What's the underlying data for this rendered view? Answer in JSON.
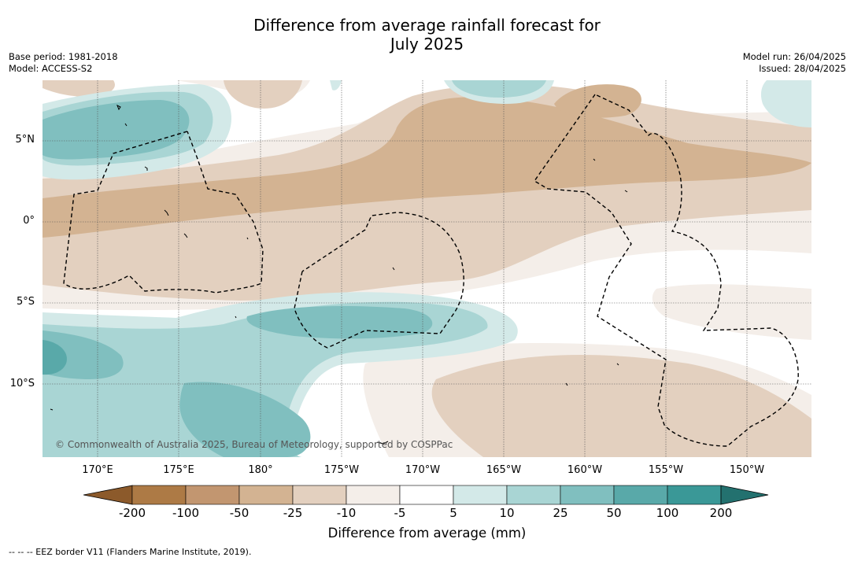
{
  "title_line1": "Difference from average rainfall forecast for",
  "title_line2": "July 2025",
  "base_period": "Base period: 1981-2018",
  "model": "Model: ACCESS-S2",
  "model_run": "Model run: 26/04/2025",
  "issued": "Issued: 28/04/2025",
  "lat_labels": [
    "5°N",
    "0°",
    "5°S",
    "10°S"
  ],
  "lon_labels": [
    "170°E",
    "175°E",
    "180°",
    "175°W",
    "170°W",
    "165°W",
    "160°W",
    "155°W",
    "150°W"
  ],
  "copyright": "© Commonwealth of Australia 2025, Bureau of Meteorology, supported by COSPPac",
  "colorbar": {
    "ticks": [
      "-200",
      "-100",
      "-50",
      "-25",
      "-10",
      "-5",
      "5",
      "10",
      "25",
      "50",
      "100",
      "200"
    ],
    "colors": [
      "#8c5a2b",
      "#ad7a45",
      "#c29670",
      "#d3b392",
      "#e3d0bf",
      "#f4eee9",
      "#ffffff",
      "#d3e9e8",
      "#a9d5d4",
      "#80bfbf",
      "#59a9a9",
      "#3a9897",
      "#23716f"
    ],
    "label": "Difference from average (mm)"
  },
  "eez_note": "--  --  -- EEZ border V11 (Flanders Marine Institute, 2019)."
}
